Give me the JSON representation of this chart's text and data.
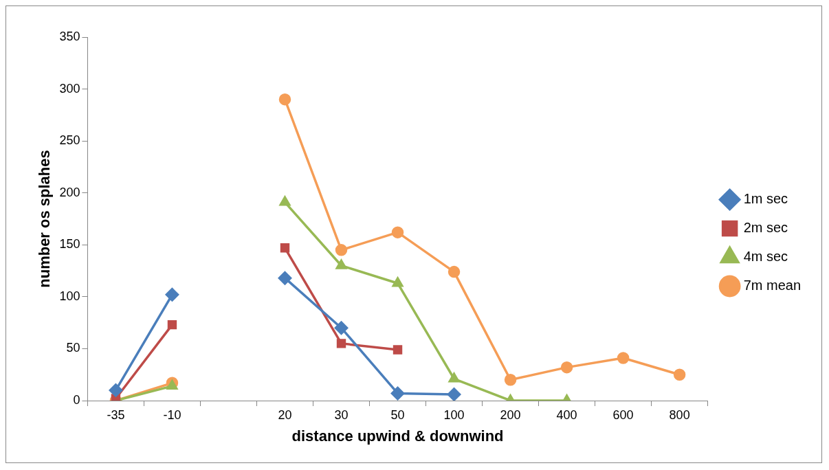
{
  "chart_data": {
    "type": "line",
    "xlabel": "distance upwind & downwind",
    "ylabel": "number os splahes",
    "categories": [
      "-35",
      "-10",
      null,
      "20",
      "30",
      "50",
      "100",
      "200",
      "400",
      "600",
      "800"
    ],
    "series": [
      {
        "name": "1m sec",
        "color": "#4a7ebb",
        "marker": "diamond",
        "values": [
          10,
          102,
          null,
          118,
          70,
          7,
          6,
          null,
          null,
          null,
          null
        ]
      },
      {
        "name": "2m sec",
        "color": "#be4b48",
        "marker": "square",
        "values": [
          2,
          73,
          null,
          147,
          55,
          49,
          null,
          null,
          null,
          null,
          null
        ]
      },
      {
        "name": "4m sec",
        "color": "#98b954",
        "marker": "triangle",
        "values": [
          0,
          14,
          null,
          191,
          130,
          113,
          21,
          0,
          0,
          null,
          null
        ]
      },
      {
        "name": "7m mean",
        "color": "#f59d56",
        "marker": "circle",
        "values": [
          0,
          17,
          null,
          290,
          145,
          162,
          124,
          20,
          32,
          41,
          25
        ]
      }
    ],
    "ylim": [
      0,
      350
    ],
    "yticks": [
      0,
      50,
      100,
      150,
      200,
      250,
      300,
      350
    ],
    "grid": false,
    "legend": "right",
    "line_style": "solid"
  }
}
